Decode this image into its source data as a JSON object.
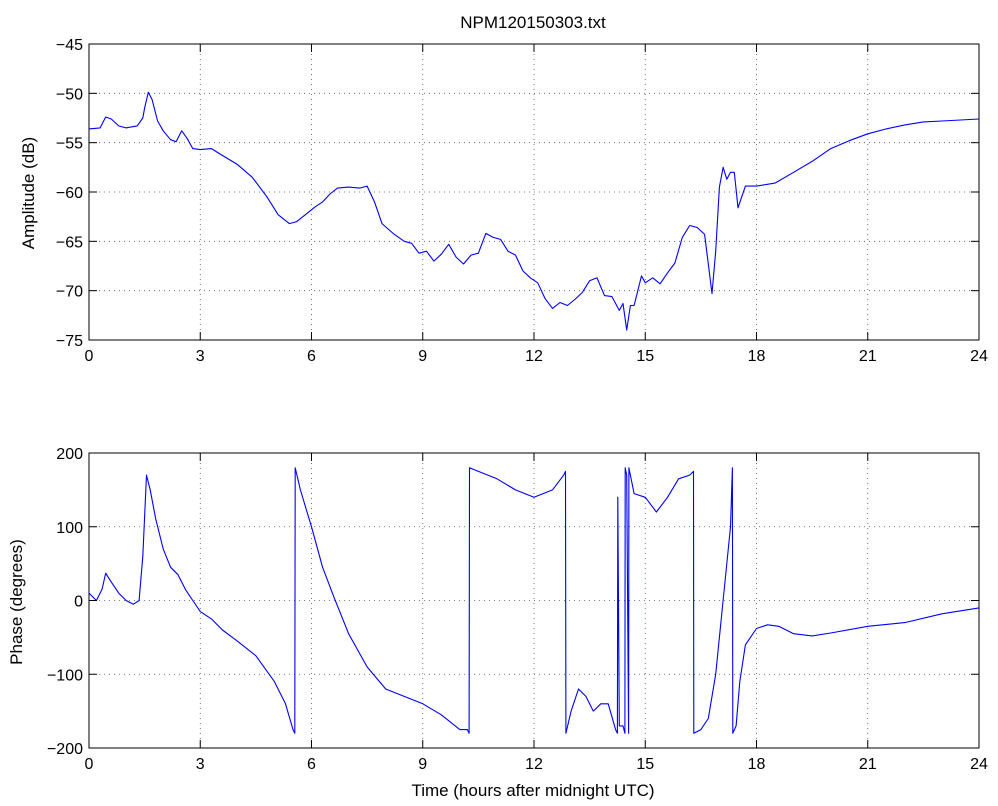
{
  "chart_data": [
    {
      "type": "line",
      "title": "NPM120150303.txt",
      "xlabel": "",
      "ylabel": "Amplitude (dB)",
      "xlim": [
        0,
        24
      ],
      "ylim": [
        -75,
        -45
      ],
      "xticks": [
        0,
        3,
        6,
        9,
        12,
        15,
        18,
        21,
        24
      ],
      "yticks": [
        -75,
        -70,
        -65,
        -60,
        -55,
        -50,
        -45
      ],
      "xtick_labels": [
        "0",
        "3",
        "6",
        "9",
        "12",
        "15",
        "18",
        "21",
        "24"
      ],
      "ytick_labels": [
        "−75",
        "−70",
        "−65",
        "−60",
        "−55",
        "−50",
        "−45"
      ],
      "grid": true,
      "color": "#0000ff",
      "x": [
        0,
        0.3,
        0.45,
        0.6,
        0.8,
        1.0,
        1.3,
        1.45,
        1.5,
        1.6,
        1.7,
        1.85,
        2.0,
        2.2,
        2.35,
        2.5,
        2.65,
        2.8,
        3.0,
        3.3,
        3.6,
        4.0,
        4.4,
        4.8,
        5.1,
        5.4,
        5.6,
        5.8,
        6.1,
        6.3,
        6.5,
        6.7,
        7.0,
        7.3,
        7.5,
        7.7,
        7.9,
        8.2,
        8.5,
        8.7,
        8.9,
        9.1,
        9.3,
        9.5,
        9.7,
        9.9,
        10.1,
        10.3,
        10.5,
        10.7,
        10.9,
        11.1,
        11.3,
        11.5,
        11.7,
        11.9,
        12.1,
        12.3,
        12.5,
        12.7,
        12.9,
        13.1,
        13.3,
        13.5,
        13.7,
        13.9,
        14.1,
        14.3,
        14.4,
        14.5,
        14.6,
        14.7,
        14.9,
        15.0,
        15.2,
        15.4,
        15.6,
        15.8,
        16.0,
        16.2,
        16.4,
        16.6,
        16.8,
        16.9,
        17.0,
        17.1,
        17.2,
        17.3,
        17.4,
        17.5,
        17.7,
        18.0,
        18.5,
        19.0,
        19.5,
        20.0,
        20.5,
        21.0,
        21.5,
        22.0,
        22.5,
        23.0,
        23.5,
        24.0
      ],
      "y": [
        -53.6,
        -53.5,
        -52.4,
        -52.6,
        -53.3,
        -53.5,
        -53.3,
        -52.5,
        -51.5,
        -49.9,
        -50.6,
        -52.8,
        -53.8,
        -54.7,
        -54.9,
        -53.8,
        -54.6,
        -55.6,
        -55.7,
        -55.6,
        -56.3,
        -57.2,
        -58.5,
        -60.5,
        -62.3,
        -63.2,
        -63.0,
        -62.4,
        -61.5,
        -61.0,
        -60.2,
        -59.6,
        -59.5,
        -59.6,
        -59.4,
        -61.0,
        -63.2,
        -64.2,
        -65.0,
        -65.2,
        -66.2,
        -66.0,
        -67.0,
        -66.3,
        -65.3,
        -66.6,
        -67.3,
        -66.4,
        -66.2,
        -64.2,
        -64.6,
        -64.8,
        -66.0,
        -66.4,
        -68.0,
        -68.7,
        -69.2,
        -70.8,
        -71.8,
        -71.2,
        -71.5,
        -70.9,
        -70.2,
        -69.0,
        -68.7,
        -70.5,
        -70.6,
        -72.0,
        -71.3,
        -74.0,
        -71.5,
        -71.5,
        -68.5,
        -69.2,
        -68.7,
        -69.3,
        -68.2,
        -67.2,
        -64.6,
        -63.4,
        -63.6,
        -64.3,
        -70.3,
        -66.0,
        -59.5,
        -57.5,
        -58.7,
        -58.0,
        -58.0,
        -61.6,
        -59.4,
        -59.4,
        -59.1,
        -58.0,
        -56.9,
        -55.6,
        -54.8,
        -54.1,
        -53.6,
        -53.2,
        -52.9,
        -52.8,
        -52.7,
        -52.6
      ]
    },
    {
      "type": "line",
      "title": "",
      "xlabel": "Time (hours after midnight UTC)",
      "ylabel": "Phase (degrees)",
      "xlim": [
        0,
        24
      ],
      "ylim": [
        -200,
        200
      ],
      "xticks": [
        0,
        3,
        6,
        9,
        12,
        15,
        18,
        21,
        24
      ],
      "yticks": [
        -200,
        -100,
        0,
        100,
        200
      ],
      "xtick_labels": [
        "0",
        "3",
        "6",
        "9",
        "12",
        "15",
        "18",
        "21",
        "24"
      ],
      "ytick_labels": [
        "−200",
        "−100",
        "0",
        "100",
        "200"
      ],
      "grid": true,
      "color": "#0000ff",
      "x": [
        0,
        0.2,
        0.35,
        0.45,
        0.6,
        0.8,
        1.0,
        1.2,
        1.35,
        1.45,
        1.55,
        1.65,
        1.8,
        2.0,
        2.2,
        2.4,
        2.6,
        2.8,
        3.0,
        3.3,
        3.6,
        4.0,
        4.5,
        5.0,
        5.3,
        5.5,
        5.55,
        5.56,
        5.7,
        6.0,
        6.3,
        6.6,
        7.0,
        7.5,
        8.0,
        8.5,
        9.0,
        9.5,
        10.0,
        10.2,
        10.25,
        10.26,
        10.5,
        11.0,
        11.5,
        12.0,
        12.5,
        12.8,
        12.85,
        12.86,
        13.0,
        13.2,
        13.4,
        13.6,
        13.8,
        14.0,
        14.2,
        14.25,
        14.26,
        14.3,
        14.4,
        14.45,
        14.46,
        14.5,
        14.55,
        14.56,
        14.7,
        15.0,
        15.3,
        15.6,
        15.9,
        16.2,
        16.3,
        16.31,
        16.5,
        16.7,
        16.9,
        17.1,
        17.3,
        17.35,
        17.36,
        17.45,
        17.55,
        17.7,
        18.0,
        18.3,
        18.6,
        19.0,
        19.5,
        20.0,
        21.0,
        22.0,
        23.0,
        24.0
      ],
      "y": [
        10,
        0,
        15,
        37,
        25,
        10,
        0,
        -5,
        0,
        60,
        170,
        150,
        110,
        70,
        45,
        35,
        15,
        0,
        -15,
        -25,
        -40,
        -55,
        -75,
        -110,
        -140,
        -175,
        -180,
        180,
        150,
        100,
        45,
        5,
        -45,
        -90,
        -120,
        -130,
        -140,
        -155,
        -175,
        -175,
        -180,
        180,
        175,
        165,
        150,
        140,
        150,
        170,
        175,
        -180,
        -150,
        -120,
        -130,
        -150,
        -140,
        -140,
        -175,
        -180,
        140,
        -170,
        -170,
        -180,
        180,
        170,
        -180,
        180,
        145,
        140,
        120,
        140,
        165,
        170,
        175,
        -180,
        -175,
        -160,
        -100,
        0,
        100,
        180,
        -180,
        -170,
        -110,
        -60,
        -38,
        -33,
        -35,
        -45,
        -48,
        -44,
        -35,
        -30,
        -18,
        -10
      ]
    }
  ]
}
